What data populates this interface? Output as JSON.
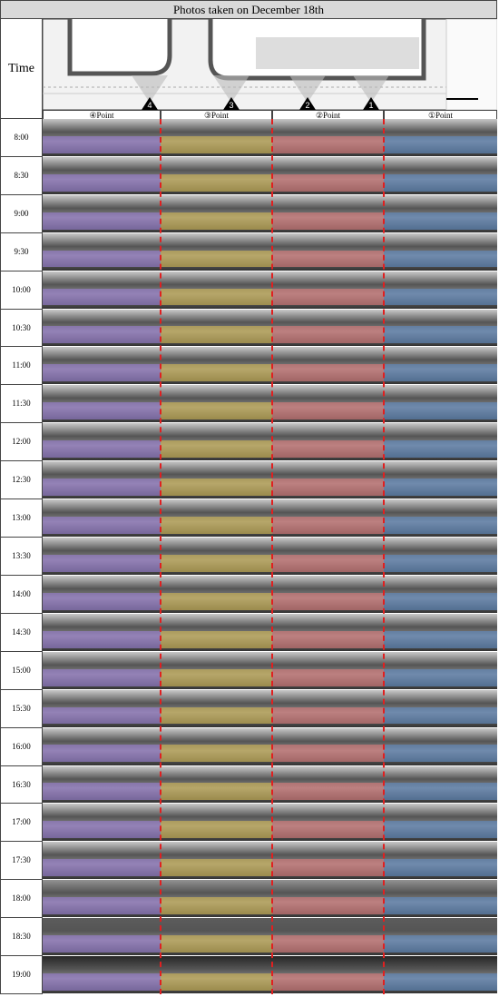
{
  "title": "Photos taken on December 18th",
  "time_header": "Time",
  "columns": [
    "④Point",
    "③Point",
    "②Point",
    "①Point"
  ],
  "markers": [
    "4",
    "3",
    "2",
    "1"
  ],
  "rows": [
    "8:00",
    "8:30",
    "9:00",
    "9:30",
    "10:00",
    "10:30",
    "11:00",
    "11:30",
    "12:00",
    "12:30",
    "13:00",
    "13:30",
    "14:00",
    "14:30",
    "15:00",
    "15:30",
    "16:00",
    "16:30",
    "17:00",
    "17:30",
    "18:00",
    "18:30",
    "19:00"
  ]
}
